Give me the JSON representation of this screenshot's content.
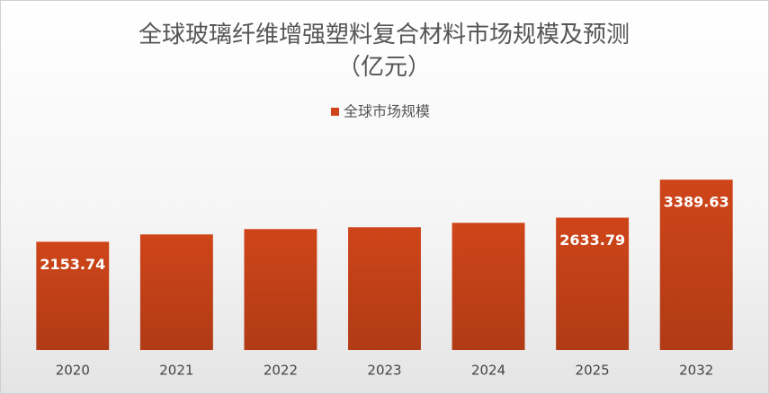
{
  "chart_data": {
    "type": "bar",
    "title": "全球玻璃纤维增强塑料复合材料市场规模及预测",
    "subtitle": "（亿元）",
    "categories": [
      "2020",
      "2021",
      "2022",
      "2023",
      "2024",
      "2025",
      "2032"
    ],
    "series": [
      {
        "name": "全球市场规模",
        "color": "#cf4519",
        "values": [
          2153.74,
          2300,
          2406,
          2442,
          2531,
          2633.79,
          3389.63
        ]
      }
    ],
    "show_value_labels": [
      true,
      false,
      false,
      false,
      false,
      true,
      true
    ],
    "ylim": [
      0,
      4000
    ],
    "grid": false,
    "legend": "top"
  }
}
